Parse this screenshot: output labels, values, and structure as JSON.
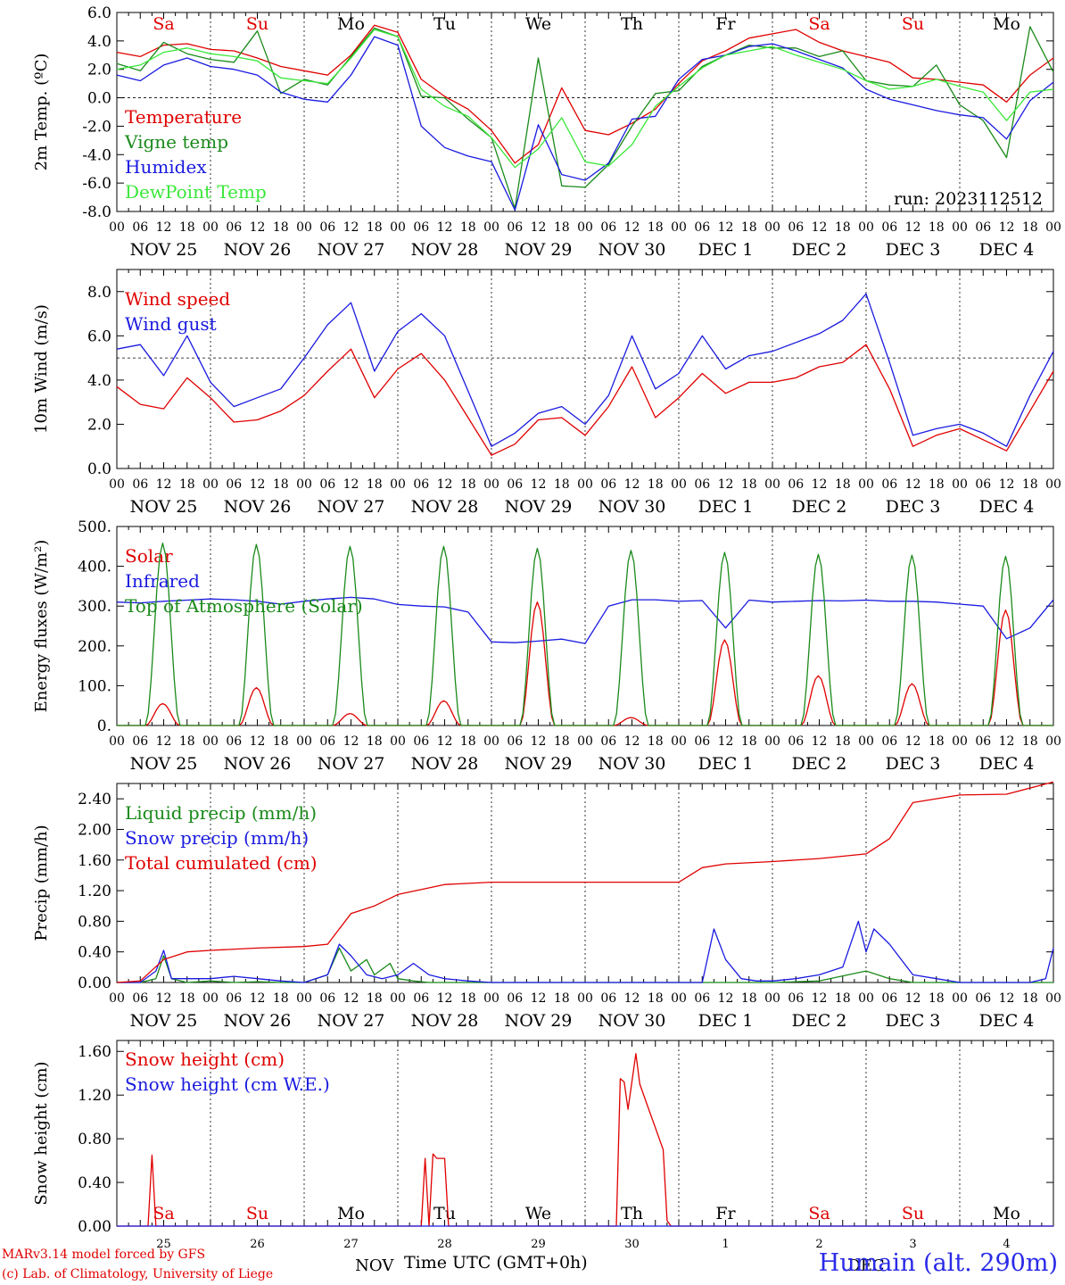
{
  "run_label": "run: 2023112512",
  "model_credit": "MARv3.14 model forced by GFS",
  "lab_credit": "(c) Lab. of Climatology, University of Liege",
  "station": "Humain (alt. 290m)",
  "xaxis_title": "Time UTC (GMT+0h)",
  "bottom_month_labels": [
    "NOV",
    "DEC"
  ],
  "colors": {
    "red": "#e00000",
    "green": "#1a8a1a",
    "blue": "#1a1ae0",
    "lightgreen": "#3ae83a",
    "weekend": "#e00000",
    "weekday": "#000000"
  },
  "day_names": [
    {
      "label": "Sa",
      "weekend": true
    },
    {
      "label": "Su",
      "weekend": true
    },
    {
      "label": "Mo",
      "weekend": false
    },
    {
      "label": "Tu",
      "weekend": false
    },
    {
      "label": "We",
      "weekend": false
    },
    {
      "label": "Th",
      "weekend": false
    },
    {
      "label": "Fr",
      "weekend": false
    },
    {
      "label": "Sa",
      "weekend": true
    },
    {
      "label": "Su",
      "weekend": true
    },
    {
      "label": "Mo",
      "weekend": false
    }
  ],
  "date_labels": [
    "NOV 25",
    "NOV 26",
    "NOV 27",
    "NOV 28",
    "NOV 29",
    "NOV 30",
    "DEC  1",
    "DEC  2",
    "DEC  3",
    "DEC  4"
  ],
  "day_numbers": [
    "25",
    "26",
    "27",
    "28",
    "29",
    "30",
    "1",
    "2",
    "3",
    "4"
  ],
  "hour_ticks": [
    "00",
    "06",
    "12",
    "18"
  ],
  "chart_data": [
    {
      "type": "line",
      "ylabel": "2m Temp. (ºC)",
      "ylim": [
        -8,
        6
      ],
      "yticks": [
        "6.0",
        "4.0",
        "2.0",
        "0.0",
        "-2.0",
        "-4.0",
        "-6.0",
        "-8.0"
      ],
      "ytick_values": [
        6,
        4,
        2,
        0,
        -2,
        -4,
        -6,
        -8
      ],
      "reference_line": 0,
      "x_unit": "hours since 2023-11-25 00 UTC",
      "series": [
        {
          "name": "Temperature",
          "color": "#e00000",
          "x": [
            0,
            6,
            12,
            18,
            24,
            30,
            36,
            42,
            48,
            54,
            60,
            66,
            72,
            78,
            84,
            90,
            96,
            102,
            108,
            114,
            120,
            126,
            132,
            138,
            144,
            150,
            156,
            162,
            168,
            174,
            180,
            186,
            192,
            198,
            204,
            210,
            216,
            222,
            228,
            234,
            240
          ],
          "y": [
            3.2,
            2.9,
            3.7,
            3.8,
            3.4,
            3.3,
            2.8,
            2.2,
            1.9,
            1.6,
            3.0,
            5.1,
            4.6,
            1.3,
            0.1,
            -0.8,
            -2.3,
            -4.6,
            -3.3,
            0.7,
            -2.3,
            -2.6,
            -1.8,
            -0.8,
            1.0,
            2.6,
            3.3,
            4.2,
            4.5,
            4.8,
            3.9,
            3.3,
            2.9,
            2.5,
            1.4,
            1.3,
            1.1,
            0.9,
            -0.3,
            1.6,
            2.8
          ]
        },
        {
          "name": "Vigne temp",
          "color": "#1a8a1a",
          "x": [
            0,
            6,
            12,
            18,
            24,
            30,
            36,
            42,
            48,
            54,
            60,
            66,
            72,
            78,
            84,
            90,
            96,
            102,
            108,
            114,
            120,
            126,
            132,
            138,
            144,
            150,
            156,
            162,
            168,
            174,
            180,
            186,
            192,
            198,
            204,
            210,
            216,
            222,
            228,
            234,
            240
          ],
          "y": [
            2.4,
            1.9,
            3.9,
            3.1,
            2.7,
            2.5,
            4.7,
            0.3,
            1.3,
            0.9,
            2.9,
            4.9,
            4.3,
            0.1,
            0.0,
            -1.5,
            -2.8,
            -7.8,
            2.8,
            -6.2,
            -6.3,
            -4.7,
            -2.0,
            0.3,
            0.5,
            2.2,
            3.0,
            3.7,
            3.5,
            3.5,
            2.9,
            3.3,
            1.2,
            0.9,
            0.8,
            2.3,
            -0.5,
            -1.6,
            -4.2,
            5.0,
            1.8
          ]
        },
        {
          "name": "Humidex",
          "color": "#1a1ae0",
          "x": [
            0,
            6,
            12,
            18,
            24,
            30,
            36,
            42,
            48,
            54,
            60,
            66,
            72,
            78,
            84,
            90,
            96,
            102,
            108,
            114,
            120,
            126,
            132,
            138,
            144,
            150,
            156,
            162,
            168,
            174,
            180,
            186,
            192,
            198,
            204,
            210,
            216,
            222,
            228,
            234,
            240
          ],
          "y": [
            1.6,
            1.2,
            2.3,
            2.8,
            2.2,
            2.0,
            1.6,
            0.4,
            -0.1,
            -0.3,
            1.6,
            4.3,
            3.7,
            -2.0,
            -3.5,
            -4.1,
            -4.5,
            -7.9,
            -1.9,
            -5.4,
            -5.8,
            -4.6,
            -1.5,
            -1.3,
            1.3,
            2.7,
            3.0,
            3.6,
            3.8,
            3.3,
            2.7,
            2.1,
            0.6,
            -0.1,
            -0.5,
            -0.9,
            -1.2,
            -1.4,
            -2.9,
            -0.2,
            1.1
          ]
        },
        {
          "name": "DewPoint Temp",
          "color": "#3ae83a",
          "x": [
            0,
            6,
            12,
            18,
            24,
            30,
            36,
            42,
            48,
            54,
            60,
            66,
            72,
            78,
            84,
            90,
            96,
            102,
            108,
            114,
            120,
            126,
            132,
            138,
            144,
            150,
            156,
            162,
            168,
            174,
            180,
            186,
            192,
            198,
            204,
            210,
            216,
            222,
            228,
            234,
            240
          ],
          "y": [
            2.0,
            2.3,
            3.2,
            3.5,
            3.1,
            2.9,
            2.6,
            1.4,
            1.2,
            1.0,
            2.8,
            4.8,
            4.3,
            0.6,
            -0.6,
            -1.3,
            -2.8,
            -4.9,
            -3.6,
            -1.4,
            -4.5,
            -4.8,
            -3.3,
            -0.6,
            0.8,
            2.1,
            3.0,
            3.3,
            3.6,
            3.0,
            2.5,
            2.0,
            1.2,
            0.6,
            0.8,
            1.3,
            0.8,
            0.4,
            -1.6,
            0.4,
            0.6
          ]
        }
      ]
    },
    {
      "type": "line",
      "ylabel": "10m Wind (m/s)",
      "ylim": [
        0,
        9
      ],
      "yticks": [
        "8.0",
        "6.0",
        "4.0",
        "2.0",
        "0.0"
      ],
      "ytick_values": [
        8,
        6,
        4,
        2,
        0
      ],
      "reference_line": 5,
      "series": [
        {
          "name": "Wind speed",
          "color": "#e00000",
          "x": [
            0,
            6,
            12,
            18,
            24,
            30,
            36,
            42,
            48,
            54,
            60,
            66,
            72,
            78,
            84,
            90,
            96,
            102,
            108,
            114,
            120,
            126,
            132,
            138,
            144,
            150,
            156,
            162,
            168,
            174,
            180,
            186,
            192,
            198,
            204,
            210,
            216,
            222,
            228,
            234,
            240
          ],
          "y": [
            3.7,
            2.9,
            2.7,
            4.1,
            3.2,
            2.1,
            2.2,
            2.6,
            3.3,
            4.4,
            5.4,
            3.2,
            4.5,
            5.2,
            4.0,
            2.3,
            0.6,
            1.1,
            2.2,
            2.3,
            1.5,
            2.8,
            4.6,
            2.3,
            3.2,
            4.3,
            3.4,
            3.9,
            3.9,
            4.1,
            4.6,
            4.8,
            5.6,
            3.6,
            1.0,
            1.5,
            1.8,
            1.3,
            0.8,
            2.6,
            4.4
          ]
        },
        {
          "name": "Wind gust",
          "color": "#1a1ae0",
          "x": [
            0,
            6,
            12,
            18,
            24,
            30,
            36,
            42,
            48,
            54,
            60,
            66,
            72,
            78,
            84,
            90,
            96,
            102,
            108,
            114,
            120,
            126,
            132,
            138,
            144,
            150,
            156,
            162,
            168,
            174,
            180,
            186,
            192,
            198,
            204,
            210,
            216,
            222,
            228,
            234,
            240
          ],
          "y": [
            5.4,
            5.6,
            4.2,
            6.0,
            3.9,
            2.8,
            3.2,
            3.6,
            5.0,
            6.5,
            7.5,
            4.4,
            6.2,
            7.0,
            6.0,
            3.5,
            1.0,
            1.6,
            2.5,
            2.8,
            2.0,
            3.3,
            6.0,
            3.6,
            4.3,
            6.0,
            4.5,
            5.1,
            5.3,
            5.7,
            6.1,
            6.7,
            7.9,
            4.8,
            1.5,
            1.8,
            2.0,
            1.6,
            1.0,
            3.3,
            5.3
          ]
        }
      ]
    },
    {
      "type": "line",
      "ylabel": "Energy fluxes (W/m²)",
      "ylim": [
        0,
        500
      ],
      "yticks": [
        "500.",
        "400.",
        "300.",
        "200.",
        "100.",
        "0."
      ],
      "ytick_values": [
        500,
        400,
        300,
        200,
        100,
        0
      ],
      "series": [
        {
          "name": "Solar",
          "color": "#e00000",
          "peaks": [
            55,
            95,
            30,
            62,
            310,
            20,
            215,
            125,
            105,
            290
          ]
        },
        {
          "name": "Infrared",
          "color": "#1a1ae0",
          "x": [
            0,
            6,
            12,
            18,
            24,
            30,
            36,
            42,
            48,
            54,
            60,
            66,
            72,
            78,
            84,
            90,
            96,
            102,
            108,
            114,
            120,
            126,
            132,
            138,
            144,
            150,
            156,
            162,
            168,
            174,
            180,
            186,
            192,
            198,
            204,
            210,
            216,
            222,
            228,
            234,
            240
          ],
          "y": [
            310,
            308,
            312,
            315,
            318,
            316,
            312,
            305,
            312,
            318,
            322,
            318,
            304,
            300,
            298,
            285,
            210,
            208,
            212,
            217,
            206,
            300,
            316,
            316,
            312,
            314,
            245,
            315,
            310,
            312,
            314,
            313,
            315,
            312,
            312,
            310,
            305,
            300,
            218,
            245,
            316
          ]
        },
        {
          "name": "Top of Atmosphere (Solar)",
          "color": "#1a8a1a",
          "peaks": [
            458,
            455,
            450,
            450,
            445,
            440,
            435,
            430,
            428,
            425
          ]
        }
      ]
    },
    {
      "type": "line",
      "ylabel": "Precip (mm/h)",
      "ylim": [
        0,
        2.6
      ],
      "yticks": [
        "2.40",
        "2.00",
        "1.60",
        "1.20",
        "0.80",
        "0.40",
        "0.00"
      ],
      "ytick_values": [
        2.4,
        2.0,
        1.6,
        1.2,
        0.8,
        0.4,
        0.0
      ],
      "series": [
        {
          "name": "Liquid precip (mm/h)",
          "color": "#1a8a1a",
          "x": [
            0,
            6,
            10,
            12,
            14,
            18,
            24,
            30,
            36,
            42,
            48,
            54,
            57,
            60,
            64,
            66,
            70,
            72,
            76,
            80,
            84,
            96,
            120,
            150,
            168,
            180,
            192,
            198,
            204,
            216,
            228,
            240
          ],
          "y": [
            0,
            0,
            0.05,
            0.35,
            0.05,
            0,
            0.02,
            0,
            0.01,
            0,
            0,
            0.1,
            0.45,
            0.15,
            0.3,
            0.1,
            0.25,
            0.05,
            0.02,
            0,
            0,
            0,
            0,
            0,
            0,
            0.02,
            0.15,
            0.05,
            0,
            0,
            0,
            0
          ]
        },
        {
          "name": "Snow precip (mm/h)",
          "color": "#1a1ae0",
          "x": [
            0,
            6,
            10,
            12,
            14,
            18,
            24,
            30,
            36,
            42,
            48,
            54,
            57,
            60,
            64,
            68,
            72,
            76,
            80,
            84,
            90,
            96,
            120,
            150,
            153,
            156,
            160,
            164,
            168,
            174,
            180,
            186,
            190,
            192,
            194,
            198,
            204,
            210,
            216,
            222,
            228,
            234,
            238,
            240
          ],
          "y": [
            0,
            0,
            0.15,
            0.42,
            0.05,
            0.05,
            0.05,
            0.08,
            0.05,
            0.02,
            0,
            0.1,
            0.5,
            0.35,
            0.1,
            0.05,
            0.1,
            0.25,
            0.1,
            0.05,
            0.02,
            0,
            0,
            0,
            0.7,
            0.3,
            0.05,
            0.02,
            0.02,
            0.05,
            0.1,
            0.2,
            0.8,
            0.4,
            0.7,
            0.5,
            0.1,
            0.05,
            0,
            0,
            0,
            0,
            0.05,
            0.45
          ]
        },
        {
          "name": "Total cumulated (cm)",
          "color": "#e00000",
          "x": [
            0,
            6,
            12,
            18,
            24,
            36,
            48,
            54,
            60,
            66,
            72,
            84,
            96,
            120,
            144,
            150,
            156,
            168,
            180,
            192,
            198,
            204,
            216,
            228,
            240
          ],
          "y": [
            0,
            0.02,
            0.3,
            0.4,
            0.42,
            0.45,
            0.47,
            0.5,
            0.9,
            1.0,
            1.15,
            1.28,
            1.31,
            1.31,
            1.31,
            1.5,
            1.55,
            1.58,
            1.62,
            1.68,
            1.88,
            2.35,
            2.45,
            2.46,
            2.62
          ]
        }
      ]
    },
    {
      "type": "line",
      "ylabel": "Snow height (cm)",
      "ylim": [
        0,
        1.7
      ],
      "yticks": [
        "1.60",
        "1.20",
        "0.80",
        "0.40",
        "0.00"
      ],
      "ytick_values": [
        1.6,
        1.2,
        0.8,
        0.4,
        0.0
      ],
      "series": [
        {
          "name": "Snow height (cm)",
          "color": "#e00000",
          "x": [
            0,
            8,
            9,
            10,
            78,
            79,
            80,
            81,
            82,
            84,
            85,
            120,
            128,
            129,
            130,
            131,
            133,
            134,
            136,
            138,
            140,
            141,
            142,
            144,
            240
          ],
          "y": [
            0,
            0,
            0.65,
            0,
            0,
            0.62,
            0,
            0.66,
            0.62,
            0.62,
            0,
            0,
            0,
            1.35,
            1.32,
            1.07,
            1.58,
            1.3,
            1.1,
            0.9,
            0.7,
            0.05,
            0,
            0,
            0
          ]
        },
        {
          "name": "Snow height (cm W.E.)",
          "color": "#1a1ae0",
          "x": [
            0,
            240
          ],
          "y": [
            0,
            0
          ]
        }
      ]
    }
  ]
}
